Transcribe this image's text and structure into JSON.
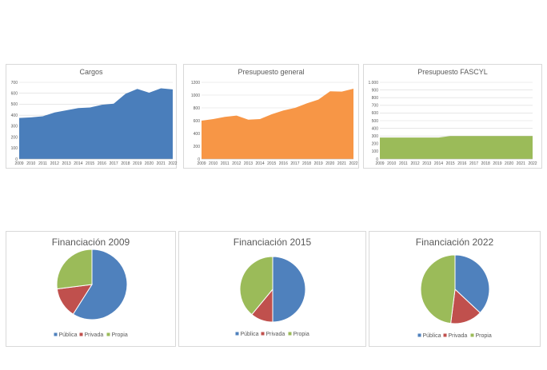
{
  "chart_data": [
    {
      "type": "area",
      "title": "Cargos",
      "x": [
        2009,
        2010,
        2011,
        2012,
        2013,
        2014,
        2015,
        2016,
        2017,
        2018,
        2019,
        2020,
        2021,
        2022
      ],
      "values": [
        375,
        380,
        390,
        425,
        445,
        465,
        470,
        495,
        505,
        595,
        640,
        605,
        645,
        635
      ],
      "ylim": [
        0,
        700
      ],
      "yticks": [
        0,
        100,
        200,
        300,
        400,
        500,
        600,
        700
      ],
      "ytick_labels": [
        "0",
        "100",
        "200",
        "300",
        "400",
        "500",
        "600",
        "700"
      ],
      "color": "#4a7ebb",
      "grid": true
    },
    {
      "type": "area",
      "title": "Presupuesto general",
      "x": [
        2009,
        2010,
        2011,
        2012,
        2013,
        2014,
        2015,
        2016,
        2017,
        2018,
        2019,
        2020,
        2021,
        2022
      ],
      "values": [
        600,
        625,
        660,
        680,
        615,
        625,
        700,
        760,
        800,
        870,
        930,
        1060,
        1055,
        1100
      ],
      "ylim": [
        0,
        1200
      ],
      "yticks": [
        0,
        200,
        400,
        600,
        800,
        1000,
        1200
      ],
      "ytick_labels": [
        "0",
        "200",
        "400",
        "600",
        "800",
        "1000",
        "1200"
      ],
      "color": "#f79646",
      "grid": true
    },
    {
      "type": "area",
      "title": "Presupuesto FASCYL",
      "x": [
        2009,
        2010,
        2011,
        2012,
        2013,
        2014,
        2015,
        2016,
        2017,
        2018,
        2019,
        2020,
        2021,
        2022
      ],
      "values": [
        280,
        280,
        280,
        280,
        280,
        280,
        300,
        300,
        300,
        300,
        300,
        300,
        300,
        300
      ],
      "ylim": [
        0,
        1000
      ],
      "yticks": [
        0,
        100,
        200,
        300,
        400,
        500,
        600,
        700,
        800,
        900,
        1000
      ],
      "ytick_labels": [
        "0",
        "100",
        "200",
        "300",
        "400",
        "500",
        "600",
        "700",
        "800",
        "900",
        "1.000"
      ],
      "color": "#9bbb59",
      "grid": true
    },
    {
      "type": "pie",
      "title": "Financiación 2009",
      "categories": [
        "Pública",
        "Privada",
        "Propia"
      ],
      "values": [
        59,
        14,
        27
      ],
      "colors": [
        "#4f81bd",
        "#c0504d",
        "#9bbb59"
      ],
      "legend": "bottom"
    },
    {
      "type": "pie",
      "title": "Financiación 2015",
      "categories": [
        "Pública",
        "Privada",
        "Propia"
      ],
      "values": [
        50,
        11,
        39
      ],
      "colors": [
        "#4f81bd",
        "#c0504d",
        "#9bbb59"
      ],
      "legend": "bottom"
    },
    {
      "type": "pie",
      "title": "Financiación 2022",
      "categories": [
        "Pública",
        "Privada",
        "Propia"
      ],
      "values": [
        37,
        15,
        48
      ],
      "colors": [
        "#4f81bd",
        "#c0504d",
        "#9bbb59"
      ],
      "legend": "bottom"
    }
  ]
}
